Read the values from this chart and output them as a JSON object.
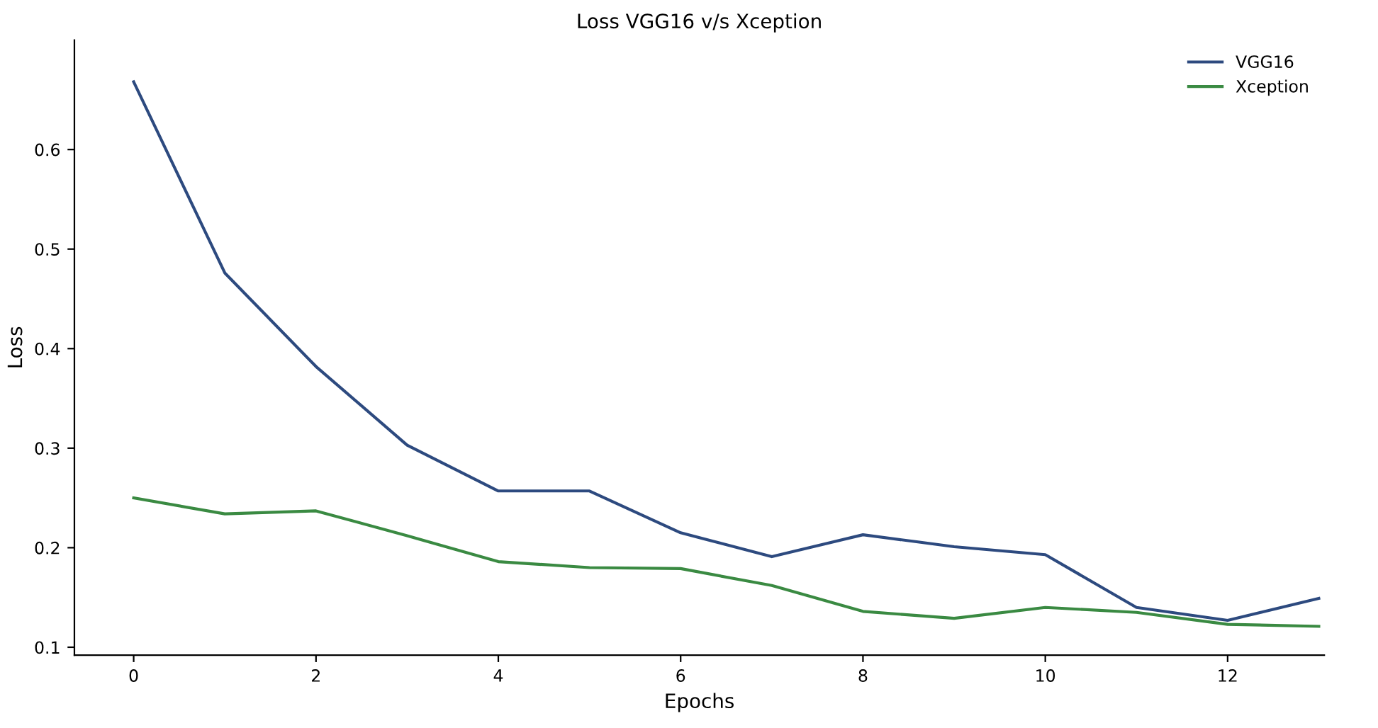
{
  "chart_data": {
    "type": "line",
    "title": "Loss VGG16 v/s Xception",
    "xlabel": "Epochs",
    "ylabel": "Loss",
    "x": [
      0,
      1,
      2,
      3,
      4,
      5,
      6,
      7,
      8,
      9,
      10,
      11,
      12,
      13
    ],
    "series": [
      {
        "name": "VGG16",
        "color": "#2d4a7f",
        "values": [
          0.668,
          0.476,
          0.382,
          0.303,
          0.257,
          0.257,
          0.215,
          0.191,
          0.213,
          0.201,
          0.193,
          0.14,
          0.127,
          0.149
        ]
      },
      {
        "name": "Xception",
        "color": "#3a8a42",
        "values": [
          0.25,
          0.234,
          0.237,
          0.212,
          0.186,
          0.18,
          0.179,
          0.162,
          0.136,
          0.129,
          0.14,
          0.135,
          0.123,
          0.121
        ]
      }
    ],
    "xlim": [
      -0.65,
      13.06
    ],
    "ylim": [
      0.092,
      0.71
    ],
    "xticks": [
      0,
      2,
      4,
      6,
      8,
      10,
      12
    ],
    "yticks": [
      0.1,
      0.2,
      0.3,
      0.4,
      0.5,
      0.6
    ],
    "grid": false,
    "legend": "top right",
    "marker": "none",
    "line_style": "solid"
  }
}
